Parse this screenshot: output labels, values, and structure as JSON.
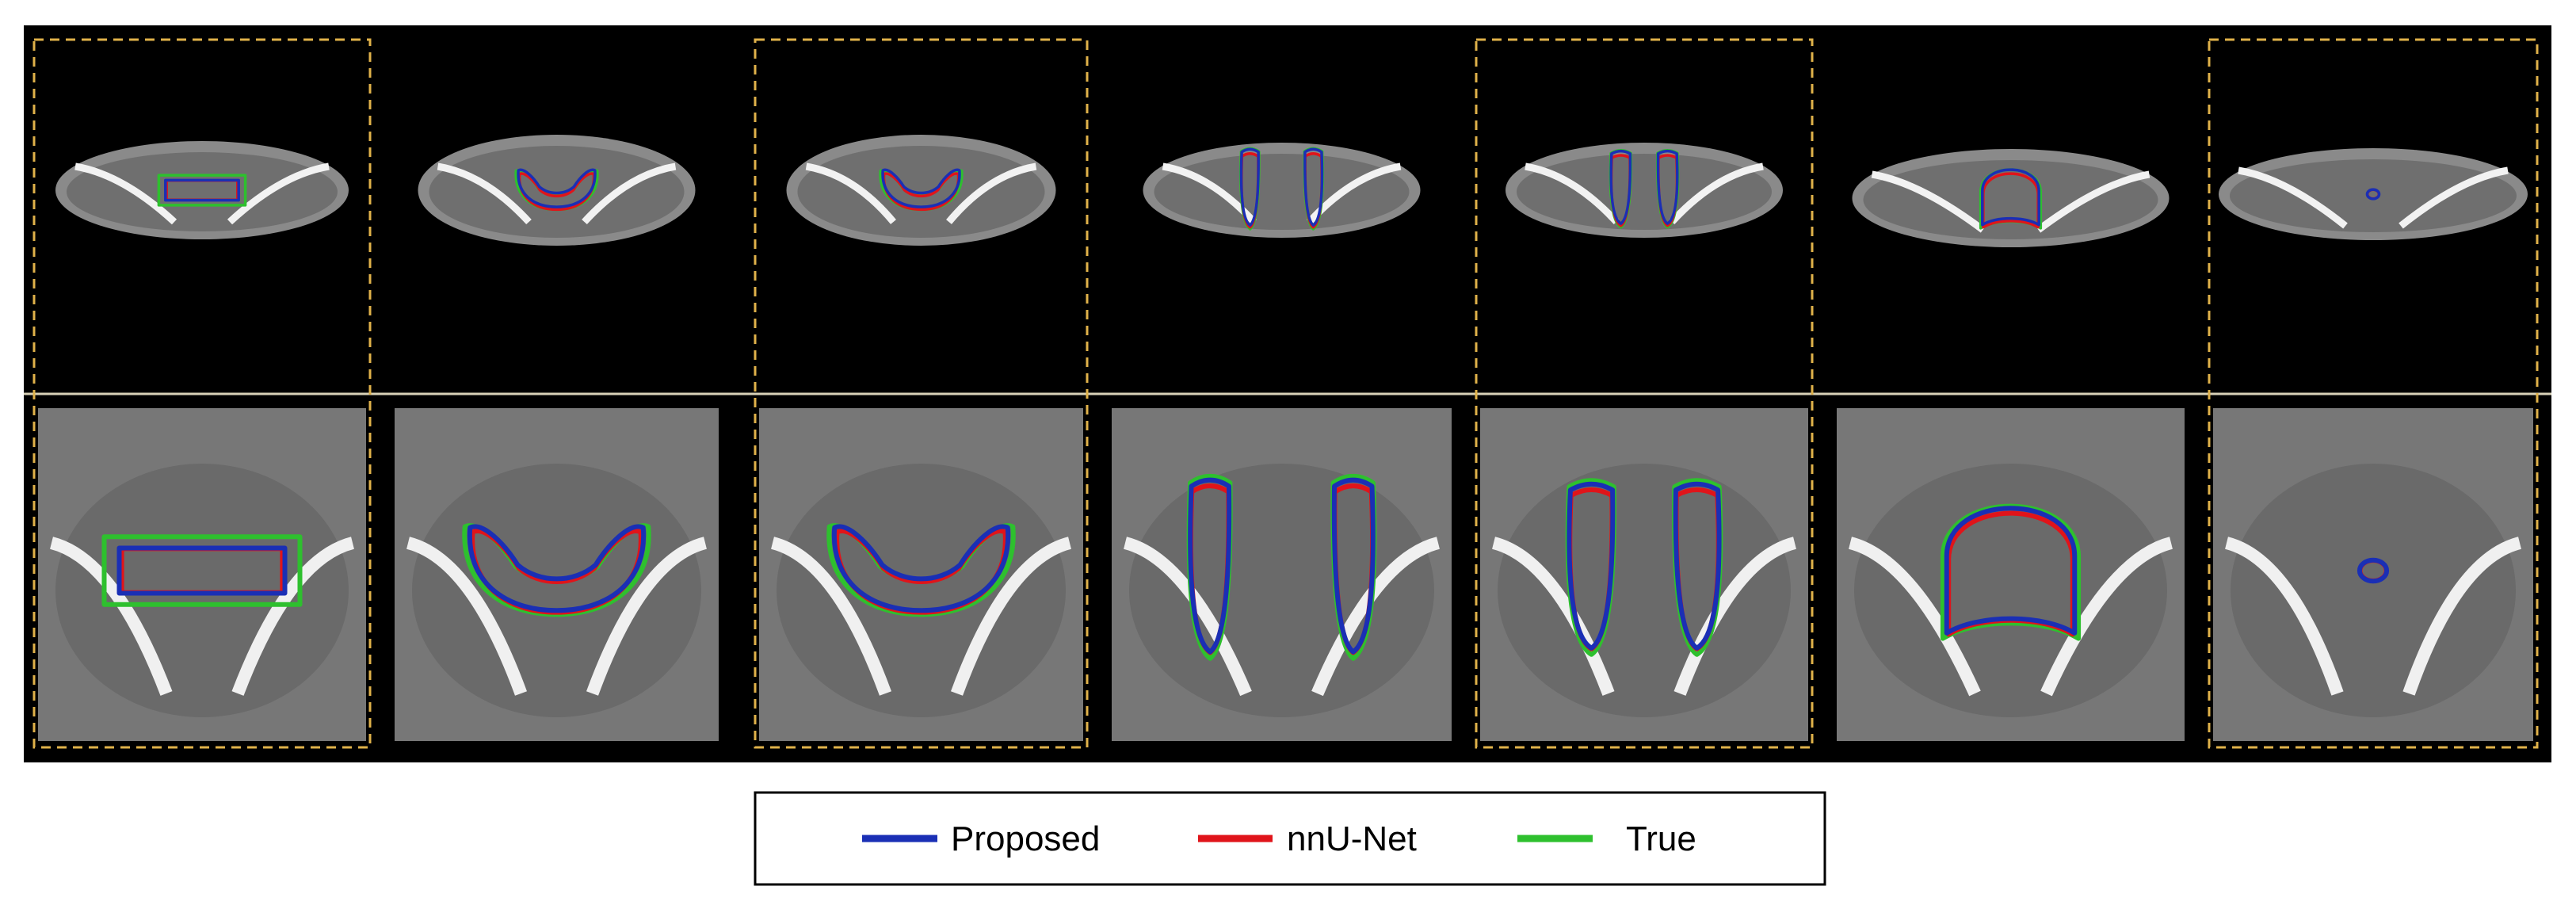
{
  "figure": {
    "rows": [
      "overview",
      "zoomed"
    ],
    "columns": 7,
    "highlighted_columns": [
      1,
      3,
      5,
      7
    ],
    "highlight_style": "dashed-gold",
    "colors": {
      "background": "#000000",
      "highlight_box": "#e0b24a",
      "row_divider": "#d9d2b8"
    }
  },
  "legend": {
    "items": [
      {
        "key": "proposed",
        "label": "Proposed",
        "color": "#1a2fb5"
      },
      {
        "key": "nnunet",
        "label": "nnU-Net",
        "color": "#e0141a"
      },
      {
        "key": "true",
        "label": "True",
        "color": "#2ec02e"
      }
    ]
  }
}
